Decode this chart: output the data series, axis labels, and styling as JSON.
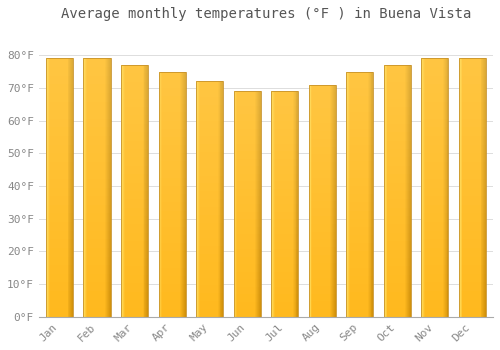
{
  "title": "Average monthly temperatures (°F ) in Buena Vista",
  "months": [
    "Jan",
    "Feb",
    "Mar",
    "Apr",
    "May",
    "Jun",
    "Jul",
    "Aug",
    "Sep",
    "Oct",
    "Nov",
    "Dec"
  ],
  "temperatures": [
    79,
    79,
    77,
    75,
    72,
    69,
    69,
    71,
    75,
    77,
    79,
    79
  ],
  "bar_color_bottom": "#F5A800",
  "bar_color_top": "#FFD966",
  "bar_edge_color": "#C8922A",
  "bar_left_highlight": "#FFE080",
  "ylim": [
    0,
    88
  ],
  "yticks": [
    0,
    10,
    20,
    30,
    40,
    50,
    60,
    70,
    80
  ],
  "ytick_labels": [
    "0°F",
    "10°F",
    "20°F",
    "30°F",
    "40°F",
    "50°F",
    "60°F",
    "70°F",
    "80°F"
  ],
  "background_color": "#FFFFFF",
  "grid_color": "#DDDDDD",
  "title_fontsize": 10,
  "tick_fontsize": 8,
  "bar_width": 0.72
}
